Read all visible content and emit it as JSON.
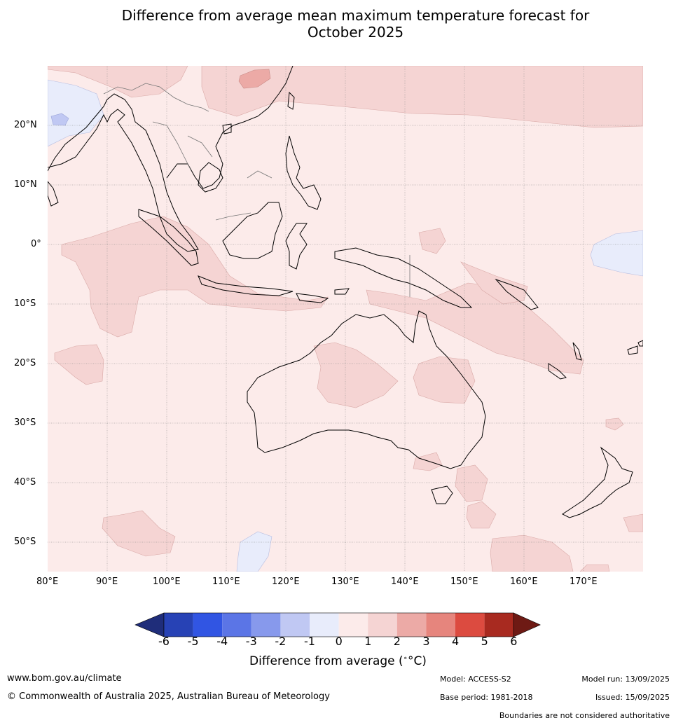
{
  "title_line1": "Difference from average mean maximum temperature forecast for",
  "title_line2": "October 2025",
  "lat_labels": [
    "20°N",
    "10°N",
    "0°",
    "10°S",
    "20°S",
    "30°S",
    "40°S",
    "50°S"
  ],
  "lon_labels": [
    "80°E",
    "90°E",
    "100°E",
    "110°E",
    "120°E",
    "130°E",
    "140°E",
    "150°E",
    "160°E",
    "170°E"
  ],
  "colorbar": {
    "ticks": [
      "-6",
      "-5",
      "-4",
      "-3",
      "-2",
      "-1",
      "0",
      "1",
      "2",
      "3",
      "4",
      "5",
      "6"
    ],
    "colors": [
      "#1f2d7a",
      "#2742b5",
      "#3155e3",
      "#5b75e6",
      "#8799ec",
      "#c0c8f3",
      "#e8ecfb",
      "#fcebea",
      "#f5d4d3",
      "#ecaaa6",
      "#e6857d",
      "#dc4b40",
      "#a82a20",
      "#6e1a14"
    ],
    "label": "Difference from average (",
    "label_unit": "°C)",
    "label_sup": "∘"
  },
  "footer": {
    "website": "www.bom.gov.au/climate",
    "copyright": "© Commonwealth of Australia 2025, Australian Bureau of Meteorology",
    "model": "Model: ACCESS-S2",
    "base_period": "Base period: 1981-2018",
    "model_run": "Model run: 13/09/2025",
    "issued": "Issued: 15/09/2025",
    "disclaimer": "Boundaries are not considered authoritative"
  },
  "map": {
    "background_color": "#fcebea",
    "lon_range": [
      80,
      180
    ],
    "lat_range": [
      -55,
      30
    ]
  }
}
